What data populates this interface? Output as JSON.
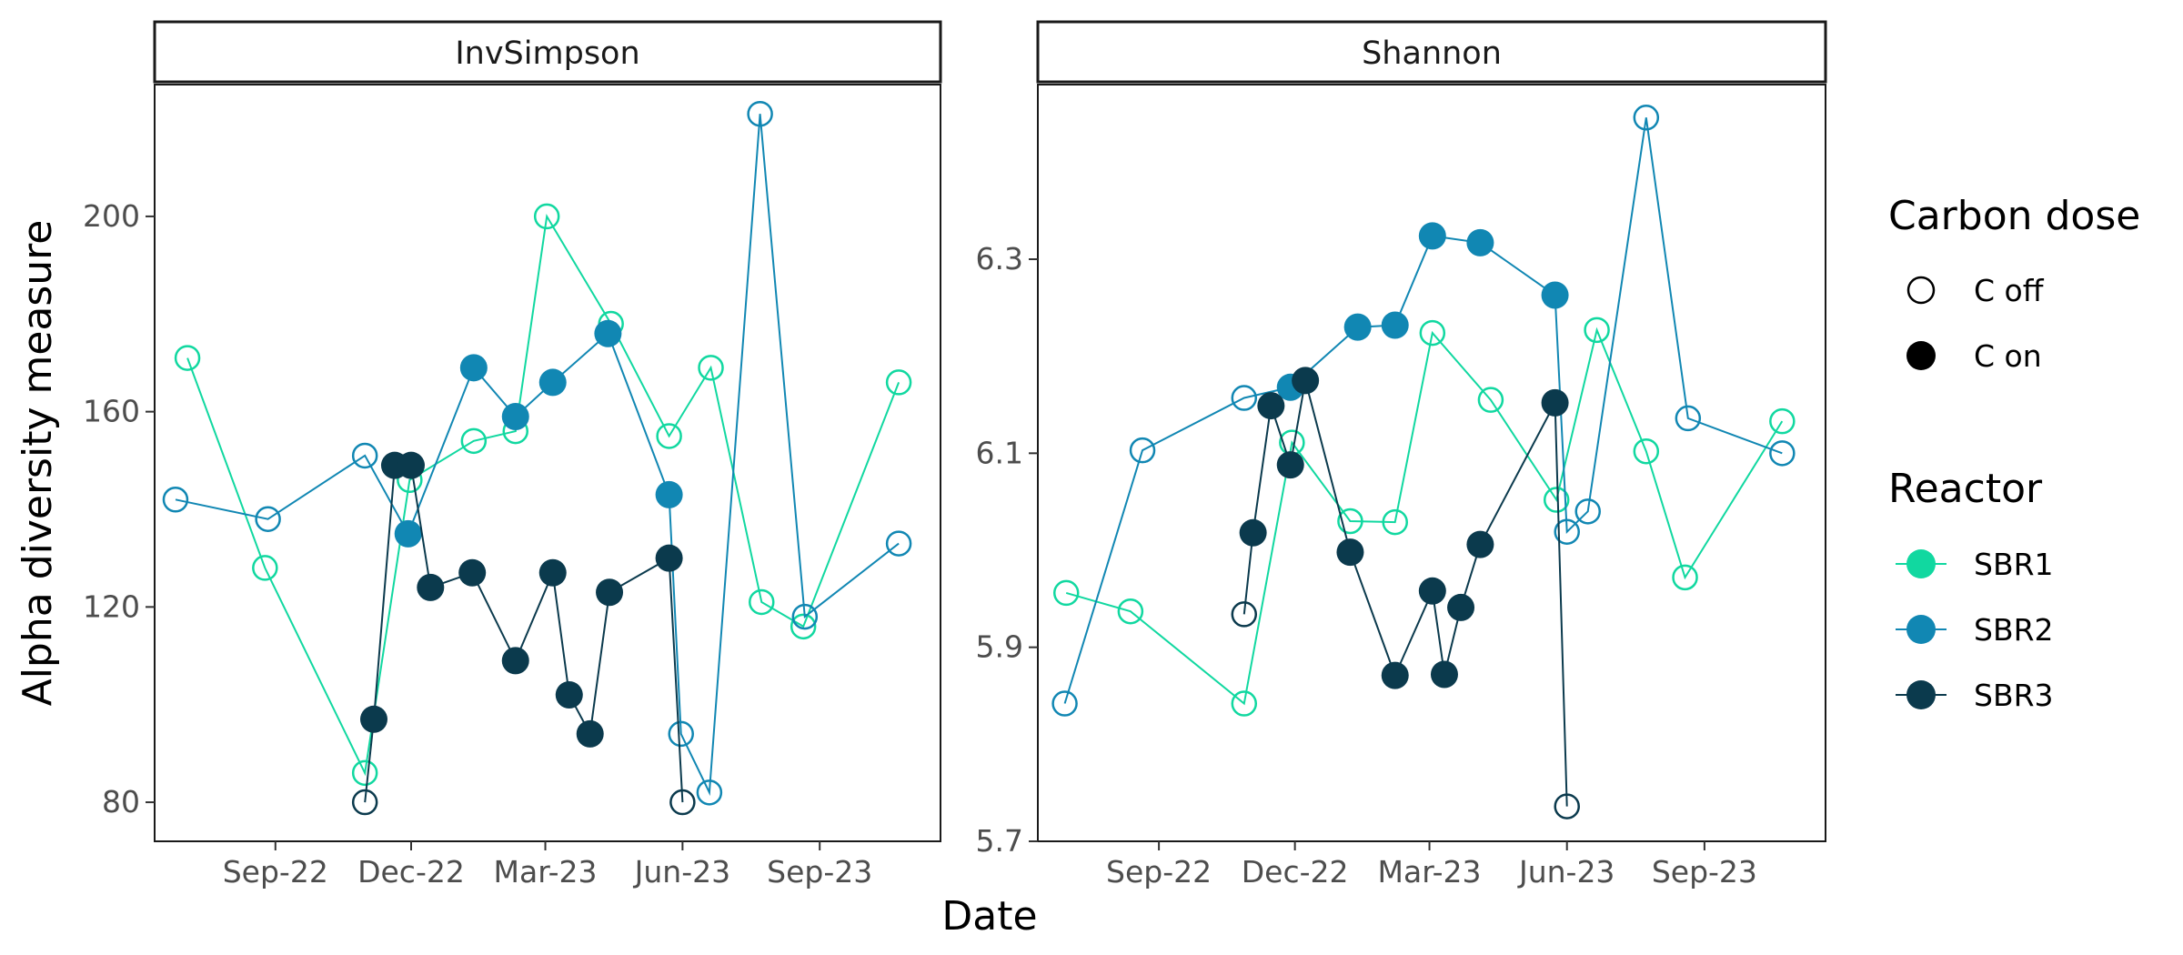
{
  "chart_data": {
    "type": "line",
    "ylabel": "Alpha diversity measure",
    "xlabel": "Date",
    "x_tick_labels": [
      "Sep-22",
      "Dec-22",
      "Mar-23",
      "Jun-23",
      "Sep-23"
    ],
    "x_tick_dates": [
      "2022-09-01",
      "2022-12-01",
      "2023-03-01",
      "2023-06-01",
      "2023-09-01"
    ],
    "xlim": [
      "2022-06-12",
      "2023-11-21"
    ],
    "legend": {
      "carbon_title": "Carbon dose",
      "carbon_items": [
        {
          "label": "C off",
          "filled": false
        },
        {
          "label": "C on",
          "filled": true
        }
      ],
      "reactor_title": "Reactor",
      "reactor_items": [
        {
          "label": "SBR1",
          "color": "#11D8A0"
        },
        {
          "label": "SBR2",
          "color": "#1187B3"
        },
        {
          "label": "SBR3",
          "color": "#0B3A4D"
        }
      ]
    },
    "panels": [
      {
        "title": "InvSimpson",
        "ylim": [
          72,
          227
        ],
        "yticks": [
          80,
          120,
          160,
          200
        ],
        "y_tick_labels": [
          "80",
          "120",
          "160",
          "200"
        ],
        "series": [
          {
            "name": "SBR1",
            "points": [
              {
                "x": "2022-07-04",
                "y": 171,
                "on": false
              },
              {
                "x": "2022-08-25",
                "y": 128,
                "on": false
              },
              {
                "x": "2022-10-31",
                "y": 86,
                "on": false
              },
              {
                "x": "2022-11-30",
                "y": 146,
                "on": false
              },
              {
                "x": "2023-01-12",
                "y": 154,
                "on": false
              },
              {
                "x": "2023-02-09",
                "y": 156,
                "on": false
              },
              {
                "x": "2023-03-02",
                "y": 200,
                "on": false
              },
              {
                "x": "2023-04-14",
                "y": 178,
                "on": false
              },
              {
                "x": "2023-05-23",
                "y": 155,
                "on": false
              },
              {
                "x": "2023-06-20",
                "y": 169,
                "on": false
              },
              {
                "x": "2023-07-24",
                "y": 121,
                "on": false
              },
              {
                "x": "2023-08-21",
                "y": 116,
                "on": false
              },
              {
                "x": "2023-10-24",
                "y": 166,
                "on": false
              }
            ]
          },
          {
            "name": "SBR2",
            "points": [
              {
                "x": "2022-06-26",
                "y": 142,
                "on": false
              },
              {
                "x": "2022-08-27",
                "y": 138,
                "on": false
              },
              {
                "x": "2022-10-31",
                "y": 151,
                "on": false
              },
              {
                "x": "2022-11-29",
                "y": 135,
                "on": true
              },
              {
                "x": "2023-01-12",
                "y": 169,
                "on": true
              },
              {
                "x": "2023-02-09",
                "y": 159,
                "on": true
              },
              {
                "x": "2023-03-06",
                "y": 166,
                "on": true
              },
              {
                "x": "2023-04-12",
                "y": 176,
                "on": true
              },
              {
                "x": "2023-05-23",
                "y": 143,
                "on": true
              },
              {
                "x": "2023-05-31",
                "y": 94,
                "on": false
              },
              {
                "x": "2023-06-19",
                "y": 82,
                "on": false
              },
              {
                "x": "2023-07-23",
                "y": 221,
                "on": false
              },
              {
                "x": "2023-08-22",
                "y": 118,
                "on": false
              },
              {
                "x": "2023-10-24",
                "y": 133,
                "on": false
              }
            ]
          },
          {
            "name": "SBR3",
            "points": [
              {
                "x": "2022-10-31",
                "y": 80,
                "on": false
              },
              {
                "x": "2022-11-06",
                "y": 97,
                "on": true
              },
              {
                "x": "2022-11-20",
                "y": 149,
                "on": true
              },
              {
                "x": "2022-12-01",
                "y": 149,
                "on": true
              },
              {
                "x": "2022-12-14",
                "y": 124,
                "on": true
              },
              {
                "x": "2023-01-11",
                "y": 127,
                "on": true
              },
              {
                "x": "2023-02-09",
                "y": 109,
                "on": true
              },
              {
                "x": "2023-03-06",
                "y": 127,
                "on": true
              },
              {
                "x": "2023-03-17",
                "y": 102,
                "on": true
              },
              {
                "x": "2023-03-31",
                "y": 94,
                "on": true
              },
              {
                "x": "2023-04-13",
                "y": 123,
                "on": true
              },
              {
                "x": "2023-05-23",
                "y": 130,
                "on": true
              },
              {
                "x": "2023-06-01",
                "y": 80,
                "on": false
              }
            ]
          }
        ]
      },
      {
        "title": "Shannon",
        "ylim": [
          5.7,
          6.48
        ],
        "yticks": [
          5.7,
          5.9,
          6.1,
          6.3
        ],
        "y_tick_labels": [
          "5.7",
          "5.9",
          "6.1",
          "6.3"
        ],
        "series": [
          {
            "name": "SBR1",
            "points": [
              {
                "x": "2022-07-01",
                "y": 5.956,
                "on": false
              },
              {
                "x": "2022-08-13",
                "y": 5.937,
                "on": false
              },
              {
                "x": "2022-10-28",
                "y": 5.842,
                "on": false
              },
              {
                "x": "2022-11-29",
                "y": 6.111,
                "on": false
              },
              {
                "x": "2023-01-07",
                "y": 6.03,
                "on": false
              },
              {
                "x": "2023-02-06",
                "y": 6.029,
                "on": false
              },
              {
                "x": "2023-03-03",
                "y": 6.224,
                "on": false
              },
              {
                "x": "2023-04-11",
                "y": 6.155,
                "on": false
              },
              {
                "x": "2023-05-25",
                "y": 6.052,
                "on": false
              },
              {
                "x": "2023-06-21",
                "y": 6.227,
                "on": false
              },
              {
                "x": "2023-07-24",
                "y": 6.102,
                "on": false
              },
              {
                "x": "2023-08-19",
                "y": 5.972,
                "on": false
              },
              {
                "x": "2023-10-23",
                "y": 6.133,
                "on": false
              }
            ]
          },
          {
            "name": "SBR2",
            "points": [
              {
                "x": "2022-06-30",
                "y": 5.842,
                "on": false
              },
              {
                "x": "2022-08-21",
                "y": 6.103,
                "on": false
              },
              {
                "x": "2022-10-28",
                "y": 6.157,
                "on": false
              },
              {
                "x": "2022-11-28",
                "y": 6.168,
                "on": true
              },
              {
                "x": "2023-01-12",
                "y": 6.23,
                "on": true
              },
              {
                "x": "2023-02-06",
                "y": 6.232,
                "on": true
              },
              {
                "x": "2023-03-03",
                "y": 6.324,
                "on": true
              },
              {
                "x": "2023-04-04",
                "y": 6.317,
                "on": true
              },
              {
                "x": "2023-05-24",
                "y": 6.263,
                "on": true
              },
              {
                "x": "2023-06-01",
                "y": 6.019,
                "on": false
              },
              {
                "x": "2023-06-15",
                "y": 6.04,
                "on": false
              },
              {
                "x": "2023-07-24",
                "y": 6.446,
                "on": false
              },
              {
                "x": "2023-08-21",
                "y": 6.136,
                "on": false
              },
              {
                "x": "2023-10-23",
                "y": 6.1,
                "on": false
              }
            ]
          },
          {
            "name": "SBR3",
            "points": [
              {
                "x": "2022-10-28",
                "y": 5.934,
                "on": false
              },
              {
                "x": "2022-11-03",
                "y": 6.018,
                "on": true
              },
              {
                "x": "2022-11-15",
                "y": 6.149,
                "on": true
              },
              {
                "x": "2022-11-28",
                "y": 6.088,
                "on": true
              },
              {
                "x": "2022-12-08",
                "y": 6.175,
                "on": true
              },
              {
                "x": "2023-01-07",
                "y": 5.998,
                "on": true
              },
              {
                "x": "2023-02-06",
                "y": 5.871,
                "on": true
              },
              {
                "x": "2023-03-03",
                "y": 5.958,
                "on": true
              },
              {
                "x": "2023-03-11",
                "y": 5.872,
                "on": true
              },
              {
                "x": "2023-03-22",
                "y": 5.941,
                "on": true
              },
              {
                "x": "2023-04-04",
                "y": 6.006,
                "on": true
              },
              {
                "x": "2023-05-24",
                "y": 6.152,
                "on": true
              },
              {
                "x": "2023-06-01",
                "y": 5.736,
                "on": false
              }
            ]
          }
        ]
      }
    ]
  }
}
